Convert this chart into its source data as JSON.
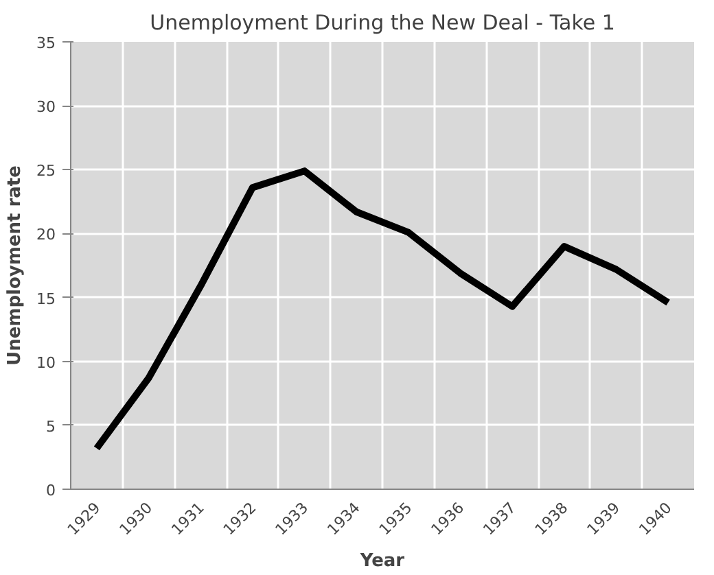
{
  "chart_data": {
    "type": "line",
    "title": "Unemployment During the New Deal - Take 1",
    "xlabel": "Year",
    "ylabel": "Unemployment rate",
    "categories": [
      "1929",
      "1930",
      "1931",
      "1932",
      "1933",
      "1934",
      "1935",
      "1936",
      "1937",
      "1938",
      "1939",
      "1940"
    ],
    "series": [
      {
        "color": "#000000",
        "values": [
          3.2,
          8.7,
          15.9,
          23.6,
          24.9,
          21.7,
          20.1,
          16.9,
          14.3,
          19.0,
          17.2,
          14.6
        ]
      }
    ],
    "ylim": [
      0,
      35
    ],
    "yticks": [
      0,
      5,
      10,
      15,
      20,
      25,
      30,
      35
    ],
    "grid": true,
    "marker": "none",
    "line_style": "solid"
  }
}
